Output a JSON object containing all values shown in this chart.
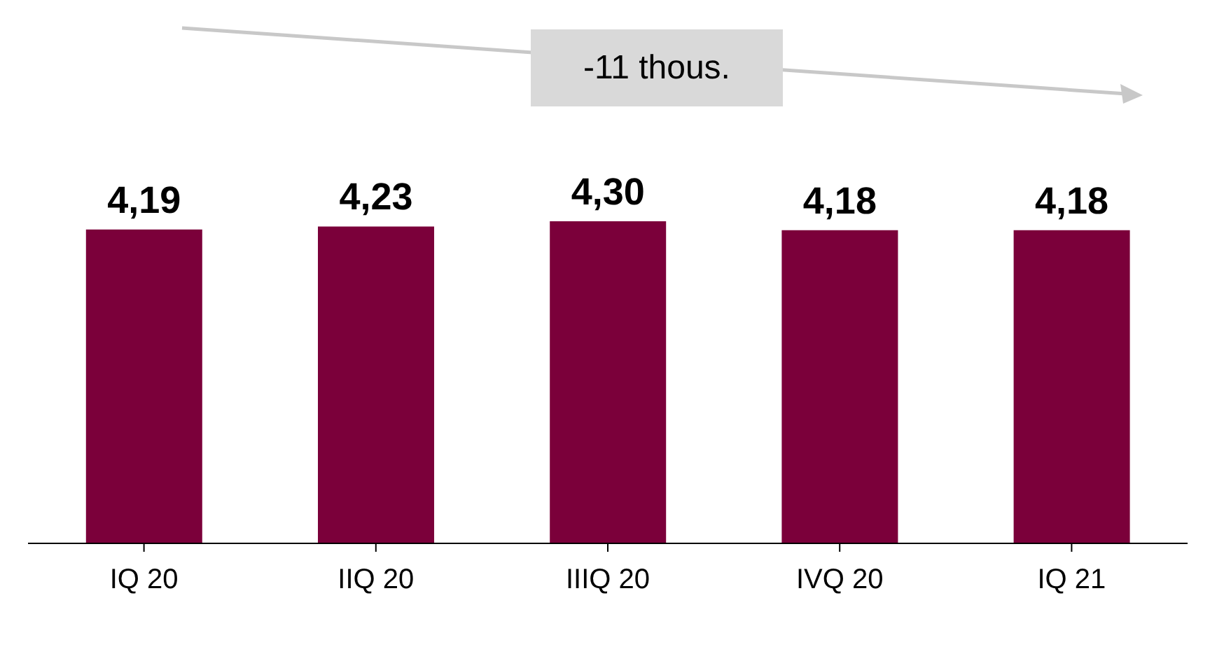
{
  "chart_data": {
    "type": "bar",
    "categories": [
      "IQ 20",
      "IIQ 20",
      "IIIQ 20",
      "IVQ 20",
      "IQ 21"
    ],
    "values": [
      4.19,
      4.23,
      4.3,
      4.18,
      4.18
    ],
    "value_labels": [
      "4,19",
      "4,23",
      "4,30",
      "4,18",
      "4,18"
    ],
    "color": "#7b003a",
    "annotations": [
      "-11 thous."
    ]
  }
}
